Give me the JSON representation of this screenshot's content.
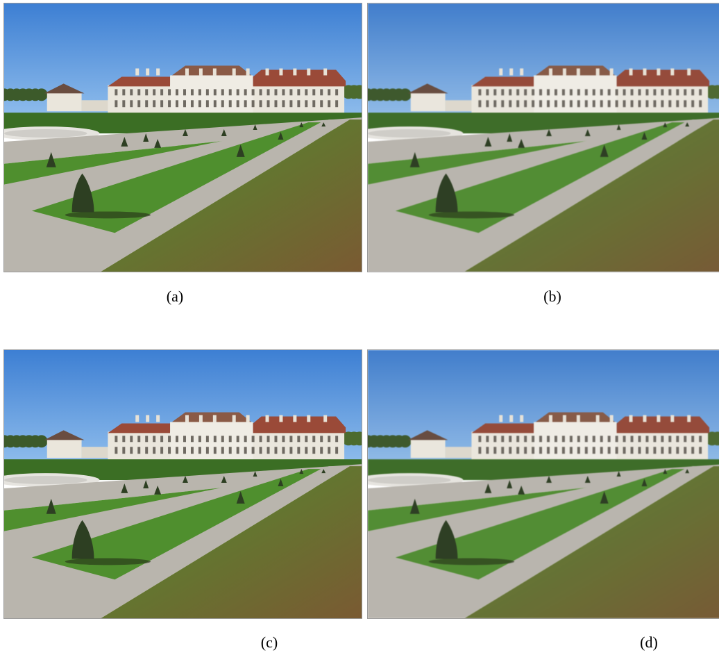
{
  "figure": {
    "panels": [
      {
        "id": "a",
        "caption": "(a)",
        "depicts": "palace-garden-photo",
        "tone": "original"
      },
      {
        "id": "b",
        "caption": "(b)",
        "depicts": "palace-garden-photo",
        "tone": "slightly-softer"
      },
      {
        "id": "c",
        "caption": "(c)",
        "depicts": "palace-garden-photo",
        "tone": "original"
      },
      {
        "id": "d",
        "caption": "(d)",
        "depicts": "palace-garden-photo",
        "tone": "slightly-softer"
      }
    ]
  },
  "colors": {
    "sky_top": "#3d7fd3",
    "sky_bottom": "#8fbdec",
    "facade": "#eae6dc",
    "roof": "#9a4a38",
    "lawn": "#4f8f2e",
    "lawn_dark": "#3b6e24",
    "path": "#b9b5ad",
    "leaves": "#7a5a32",
    "tree": "#2d3f22"
  }
}
